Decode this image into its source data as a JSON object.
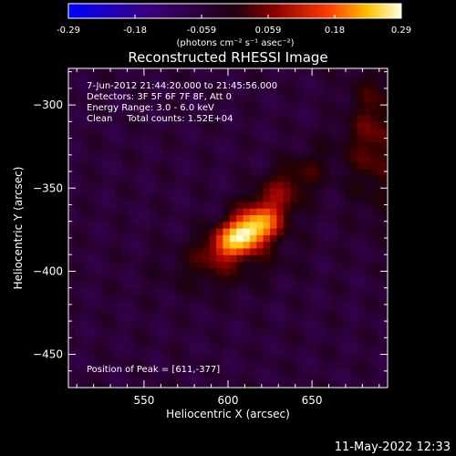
{
  "colorbar": {
    "ticks": [
      "-0.29",
      "-0.18",
      "-0.059",
      "0.059",
      "0.18",
      "0.29"
    ],
    "units": "(photons cm⁻² s⁻¹ asec⁻²)",
    "range": [
      -0.29,
      0.29
    ]
  },
  "timestamp": "11-May-2022 12:33",
  "chart_data": {
    "type": "heatmap",
    "title": "Reconstructed RHESSI Image",
    "xlabel": "Heliocentric X (arcsec)",
    "ylabel": "Heliocentric Y (arcsec)",
    "xlim": [
      505,
      695
    ],
    "ylim": [
      -470,
      -278
    ],
    "xticks": [
      550,
      600,
      650
    ],
    "yticks": [
      -300,
      -350,
      -400,
      -450
    ],
    "annotations": [
      "7-Jun-2012 21:44:20.000 to 21:45:56.000",
      "Detectors: 3F 5F 6F 7F 8F, Att 0",
      "Energy Range: 3.0 - 6.0 keV",
      "Clean     Total counts: 1.52E+04"
    ],
    "peak_label": "Position of Peak = [611,-377]",
    "peak": [
      611,
      -377
    ],
    "peak_value": 0.29,
    "background_value": -0.06,
    "components": [
      {
        "x": 611,
        "y": -377,
        "sx": 14,
        "sy": 7,
        "angle": 28,
        "amp": 0.3
      },
      {
        "x": 628,
        "y": -355,
        "sx": 26,
        "sy": 9,
        "angle": 40,
        "amp": 0.1
      },
      {
        "x": 600,
        "y": -395,
        "sx": 26,
        "sy": 12,
        "angle": 10,
        "amp": 0.055
      },
      {
        "x": 688,
        "y": -320,
        "sx": 12,
        "sy": 30,
        "angle": 0,
        "amp": 0.09
      }
    ]
  }
}
